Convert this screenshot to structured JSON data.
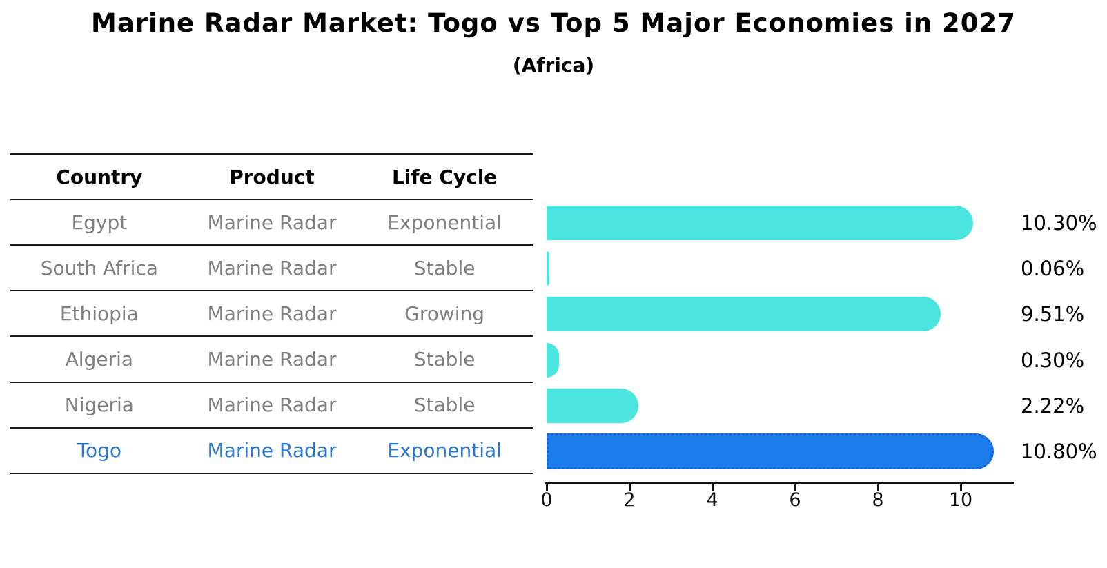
{
  "title": "Marine Radar Market: Togo vs Top 5 Major Economies in 2027",
  "subtitle": "(Africa)",
  "table": {
    "headers": [
      "Country",
      "Product",
      "Life Cycle"
    ],
    "rows": [
      {
        "country": "Egypt",
        "product": "Marine Radar",
        "life_cycle": "Exponential"
      },
      {
        "country": "South Africa",
        "product": "Marine Radar",
        "life_cycle": "Stable"
      },
      {
        "country": "Ethiopia",
        "product": "Marine Radar",
        "life_cycle": "Growing"
      },
      {
        "country": "Algeria",
        "product": "Marine Radar",
        "life_cycle": "Stable"
      },
      {
        "country": "Nigeria",
        "product": "Marine Radar",
        "life_cycle": "Stable"
      },
      {
        "country": "Togo",
        "product": "Marine Radar",
        "life_cycle": "Exponential"
      }
    ]
  },
  "chart_data": {
    "type": "bar",
    "orientation": "horizontal",
    "title": "Marine Radar Market: Togo vs Top 5 Major Economies in 2027 (Africa)",
    "xlabel": "",
    "ylabel": "",
    "categories": [
      "Egypt",
      "South Africa",
      "Ethiopia",
      "Algeria",
      "Nigeria",
      "Togo"
    ],
    "values": [
      10.3,
      0.06,
      9.51,
      0.3,
      2.22,
      10.8
    ],
    "value_labels": [
      "10.30%",
      "0.06%",
      "9.51%",
      "0.30%",
      "2.22%",
      "10.80%"
    ],
    "xlim": [
      0,
      11.3
    ],
    "xticks": [
      0,
      2,
      4,
      6,
      8,
      10
    ],
    "grid": "off",
    "legend": "none",
    "highlight_index": 5,
    "colors": {
      "bar": "#4AE5DF",
      "highlight_bar": "#1B7CEC",
      "highlight_bar_edge": "#1A5ECD",
      "highlight_text": "#2B77C9",
      "table_text": "#7F7F7F",
      "header_text": "#000000",
      "axis": "#111111"
    }
  }
}
